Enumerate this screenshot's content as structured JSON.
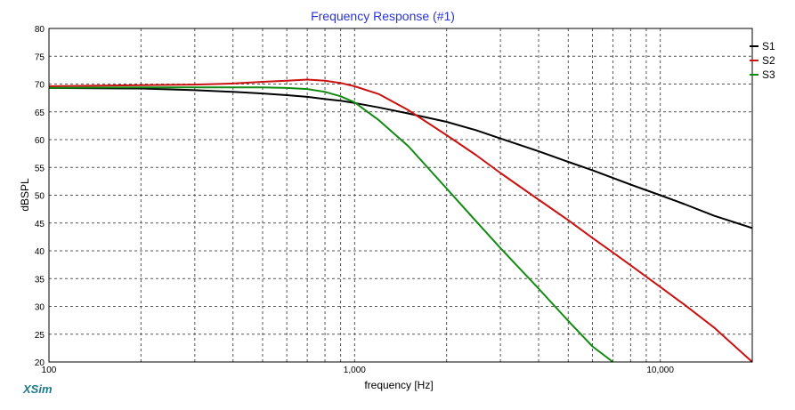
{
  "window": {
    "brand": "XSim",
    "colors": {
      "title": "#2a35d6",
      "brand": "#1f7a8c",
      "grid": "#555555",
      "frame": "#000000",
      "background": "#ffffff"
    }
  },
  "chart_data": {
    "type": "line",
    "title": "Frequency Response (#1)",
    "xlabel": "frequency [Hz]",
    "ylabel": "dBSPL",
    "xscale": "log",
    "xlim": [
      100,
      20000
    ],
    "ylim": [
      20,
      80
    ],
    "yticks": [
      20,
      25,
      30,
      35,
      40,
      45,
      50,
      55,
      60,
      65,
      70,
      75,
      80
    ],
    "xtick_labels": [
      {
        "value": 100,
        "label": "100"
      },
      {
        "value": 1000,
        "label": "1,000"
      },
      {
        "value": 10000,
        "label": "10,000"
      }
    ],
    "grid": true,
    "legend_position": "right",
    "series": [
      {
        "name": "S1",
        "color": "#000000",
        "points": [
          [
            100,
            69.3
          ],
          [
            200,
            69.2
          ],
          [
            300,
            68.9
          ],
          [
            400,
            68.6
          ],
          [
            500,
            68.3
          ],
          [
            600,
            68.0
          ],
          [
            700,
            67.7
          ],
          [
            800,
            67.3
          ],
          [
            900,
            67.0
          ],
          [
            1000,
            66.6
          ],
          [
            1200,
            65.8
          ],
          [
            1500,
            64.7
          ],
          [
            2000,
            63.2
          ],
          [
            2500,
            61.7
          ],
          [
            3000,
            60.2
          ],
          [
            4000,
            57.9
          ],
          [
            5000,
            56.0
          ],
          [
            6000,
            54.5
          ],
          [
            7000,
            53.1
          ],
          [
            8000,
            51.9
          ],
          [
            10000,
            50.0
          ],
          [
            12000,
            48.4
          ],
          [
            15000,
            46.3
          ],
          [
            20000,
            44.1
          ]
        ]
      },
      {
        "name": "S2",
        "color": "#cc1111",
        "points": [
          [
            100,
            69.6
          ],
          [
            200,
            69.8
          ],
          [
            300,
            69.9
          ],
          [
            400,
            70.1
          ],
          [
            500,
            70.4
          ],
          [
            600,
            70.6
          ],
          [
            700,
            70.8
          ],
          [
            800,
            70.6
          ],
          [
            900,
            70.2
          ],
          [
            1000,
            69.6
          ],
          [
            1200,
            68.2
          ],
          [
            1500,
            65.3
          ],
          [
            2000,
            60.8
          ],
          [
            2500,
            57.2
          ],
          [
            3000,
            54.0
          ],
          [
            4000,
            49.2
          ],
          [
            5000,
            45.5
          ],
          [
            6000,
            42.3
          ],
          [
            7000,
            39.7
          ],
          [
            8000,
            37.4
          ],
          [
            10000,
            33.5
          ],
          [
            12000,
            30.3
          ],
          [
            15000,
            26.2
          ],
          [
            20000,
            20.0
          ]
        ]
      },
      {
        "name": "S3",
        "color": "#118a11",
        "points": [
          [
            100,
            69.3
          ],
          [
            200,
            69.4
          ],
          [
            300,
            69.4
          ],
          [
            400,
            69.4
          ],
          [
            500,
            69.4
          ],
          [
            600,
            69.3
          ],
          [
            700,
            69.1
          ],
          [
            800,
            68.6
          ],
          [
            900,
            67.8
          ],
          [
            1000,
            66.7
          ],
          [
            1200,
            63.5
          ],
          [
            1500,
            58.8
          ],
          [
            2000,
            51.2
          ],
          [
            2500,
            45.3
          ],
          [
            3000,
            40.5
          ],
          [
            4000,
            33.2
          ],
          [
            5000,
            27.4
          ],
          [
            6000,
            22.8
          ],
          [
            7000,
            20.0
          ]
        ]
      }
    ]
  }
}
